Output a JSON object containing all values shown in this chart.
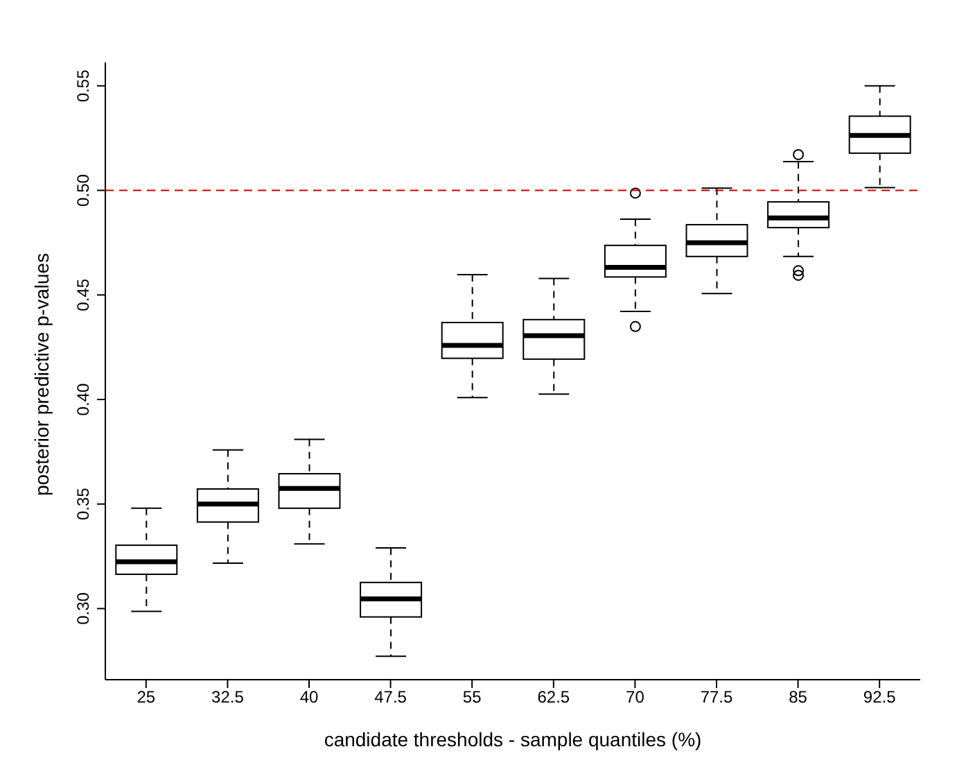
{
  "chart_data": {
    "type": "box",
    "xlabel": "candidate thresholds - sample quantiles (%)",
    "ylabel": "posterior predictive p-values",
    "categories": [
      "25",
      "32.5",
      "40",
      "47.5",
      "55",
      "62.5",
      "70",
      "77.5",
      "85",
      "92.5"
    ],
    "boxes": [
      {
        "low": 0.2987,
        "q1": 0.3164,
        "median": 0.3224,
        "q3": 0.3303,
        "high": 0.348
      },
      {
        "low": 0.3217,
        "q1": 0.3414,
        "median": 0.35,
        "q3": 0.3572,
        "high": 0.3759
      },
      {
        "low": 0.3309,
        "q1": 0.348,
        "median": 0.3575,
        "q3": 0.3645,
        "high": 0.3809
      },
      {
        "low": 0.2772,
        "q1": 0.296,
        "median": 0.3046,
        "q3": 0.3125,
        "high": 0.329
      },
      {
        "low": 0.4009,
        "q1": 0.4197,
        "median": 0.4259,
        "q3": 0.4368,
        "high": 0.4597
      },
      {
        "low": 0.4026,
        "q1": 0.4193,
        "median": 0.4305,
        "q3": 0.4382,
        "high": 0.4579
      },
      {
        "low": 0.4421,
        "q1": 0.4586,
        "median": 0.4632,
        "q3": 0.4737,
        "high": 0.4862,
        "outliers": [
          0.4987,
          0.4349
        ]
      },
      {
        "low": 0.4507,
        "q1": 0.4684,
        "median": 0.475,
        "q3": 0.4836,
        "high": 0.5011
      },
      {
        "low": 0.4684,
        "q1": 0.4822,
        "median": 0.4868,
        "q3": 0.4945,
        "high": 0.5138,
        "outliers": [
          0.5171,
          0.4616,
          0.4594
        ]
      },
      {
        "low": 0.5013,
        "q1": 0.5178,
        "median": 0.5263,
        "q3": 0.5355,
        "high": 0.55
      }
    ],
    "color": "#000000",
    "ylim": [
      0.266,
      0.5612
    ],
    "yticks": [
      {
        "value": 0.3,
        "label": "0.30"
      },
      {
        "value": 0.35,
        "label": "0.35"
      },
      {
        "value": 0.4,
        "label": "0.40"
      },
      {
        "value": 0.45,
        "label": "0.45"
      },
      {
        "value": 0.5,
        "label": "0.50"
      },
      {
        "value": 0.55,
        "label": "0.55"
      }
    ],
    "ref_lines": [
      {
        "axis": "y",
        "value": 0.5,
        "color": "#cc0000",
        "line_style": "dashed"
      }
    ],
    "grid": false,
    "legend": false
  }
}
